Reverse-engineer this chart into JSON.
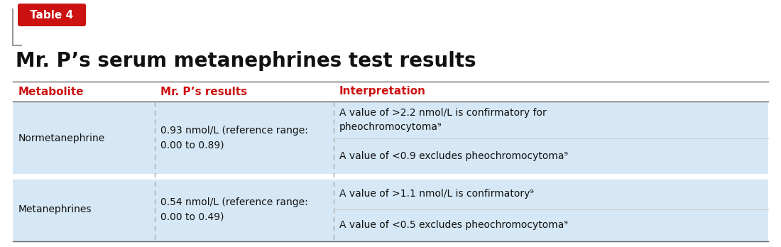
{
  "title": "Mr. P’s serum metanephrines test results",
  "table_label": "Table 4",
  "header_bg": "#cc1111",
  "col_headers": [
    "Metabolite",
    "Mr. P’s results",
    "Interpretation"
  ],
  "col_header_color": "#cc1111",
  "row_bg": "#d6e8f5",
  "row_separator_color": "#ffffff",
  "dashed_line_color": "#999999",
  "rows": [
    {
      "metabolite": "Normetanephrine",
      "result": "0.93 nmol/L (reference range:\n0.00 to 0.89)",
      "interp1": "A value of >2.2 nmol/L is confirmatory for\npheochromocytoma⁹",
      "interp2": "A value of <0.9 excludes pheochromocytoma⁹"
    },
    {
      "metabolite": "Metanephrines",
      "result": "0.54 nmol/L (reference range:\n0.00 to 0.49)",
      "interp1": "A value of >1.1 nmol/L is confirmatory⁹",
      "interp2": "A value of <0.5 excludes pheochromocytoma⁹"
    }
  ],
  "bg_color": "#ffffff",
  "text_color": "#111111",
  "font_size_title": 20,
  "font_size_header": 11,
  "font_size_cell": 10,
  "font_size_label": 10,
  "label_text_color": "#ffffff",
  "border_color": "#888888",
  "col_divider_color": "#aaaaaa"
}
